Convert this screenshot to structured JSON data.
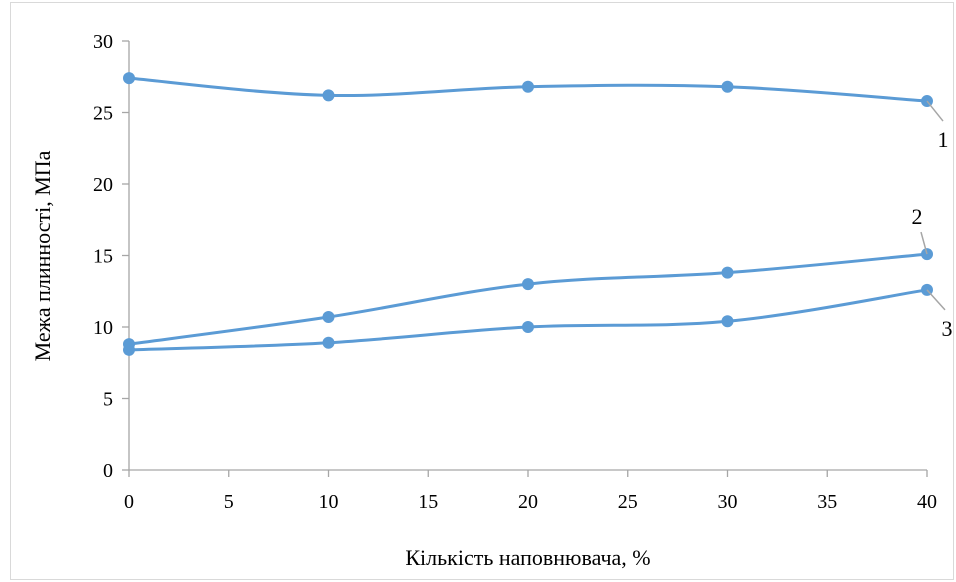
{
  "chart_data": {
    "type": "line",
    "title": "",
    "xlabel": "Кількість наповнювача, %",
    "ylabel": "Межа плинності, МПа",
    "x_ticks": [
      "0",
      "5",
      "10",
      "15",
      "20",
      "25",
      "30",
      "35",
      "40"
    ],
    "y_ticks": [
      "0",
      "5",
      "10",
      "15",
      "20",
      "25",
      "30"
    ],
    "xlim": [
      0,
      40
    ],
    "ylim": [
      0,
      30
    ],
    "grid": false,
    "legend": "none",
    "line_color": "#5b9bd5",
    "x": [
      0,
      10,
      20,
      30,
      40
    ],
    "series": [
      {
        "label": "1",
        "values": [
          27.4,
          26.2,
          26.8,
          26.8,
          25.8
        ]
      },
      {
        "label": "2",
        "values": [
          8.8,
          10.7,
          13.0,
          13.8,
          15.1
        ]
      },
      {
        "label": "3",
        "values": [
          8.4,
          8.9,
          10.0,
          10.4,
          12.6
        ]
      }
    ]
  }
}
